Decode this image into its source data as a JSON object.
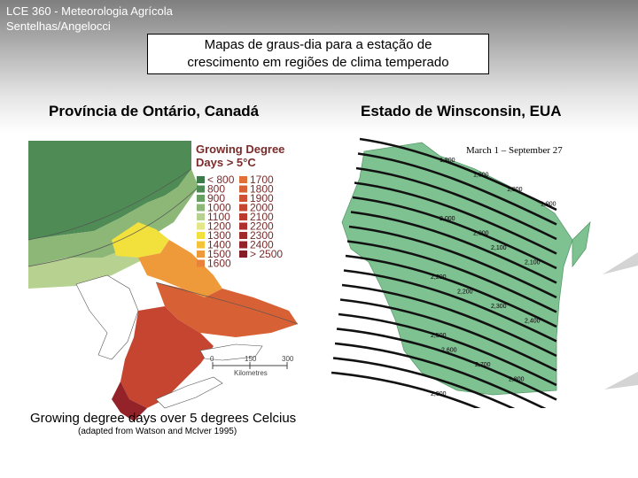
{
  "header": {
    "course_line1": "LCE 360 - Meteorologia Agrícola",
    "course_line2": "Sentelhas/Angelocci",
    "title_line1": "Mapas de graus-dia para a estação de",
    "title_line2": "crescimento em regiões de clima temperado"
  },
  "left": {
    "caption": "Província de Ontário, Canadá",
    "legend_title_1": "Growing Degree",
    "legend_title_2": "Days > 5°C",
    "legend_col1": [
      "< 800",
      "800",
      "900",
      "1000",
      "1100",
      "1200",
      "1300",
      "1400",
      "1500",
      "1600"
    ],
    "legend_col2": [
      "1700",
      "1800",
      "1900",
      "2000",
      "2100",
      "2200",
      "2300",
      "2400",
      "> 2500"
    ],
    "legend_colors_col1": [
      "#3d7a4a",
      "#4f8b55",
      "#67a060",
      "#8cb777",
      "#b7d191",
      "#e3e78a",
      "#f2e13c",
      "#f3c33a",
      "#ef9a3a",
      "#e8823a"
    ],
    "legend_colors_col2": [
      "#e07038",
      "#d86035",
      "#cf5133",
      "#c54531",
      "#ba3a2e",
      "#ad302c",
      "#a0292a",
      "#932328",
      "#861c26"
    ],
    "scale_ticks": [
      "0",
      "150",
      "300"
    ],
    "scale_unit": "Kilometres",
    "footer_1": "Growing degree days over 5 degrees Celcius",
    "footer_2": "(adapted from Watson and McIver 1995)"
  },
  "right": {
    "caption": "Estado de Winsconsin, EUA",
    "map_title": "March 1 – September 27",
    "isolines": [
      "1,800",
      "1,900",
      "1,800",
      "1,900",
      "2,000",
      "2,000",
      "2,100",
      "2,100",
      "2,200",
      "2,200",
      "2,300",
      "2,400",
      "2,500",
      "2,600",
      "2,700",
      "2,800",
      "2,900"
    ],
    "land_color": "#7fc291"
  }
}
